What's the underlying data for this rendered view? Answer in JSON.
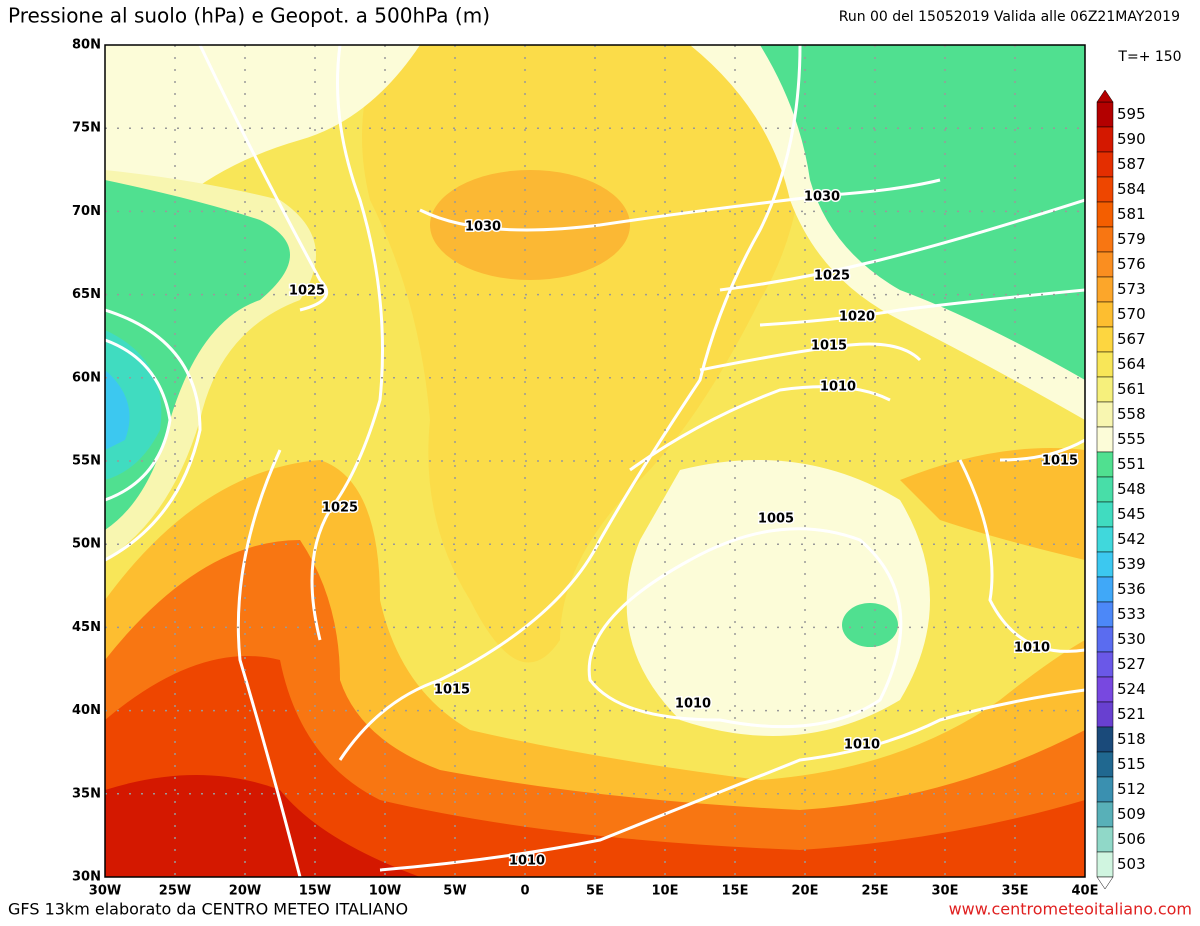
{
  "header": {
    "title": "Pressione al suolo (hPa) e Geopot. a 500hPa (m)",
    "run": "Run 00 del 15052019  Valida alle 06Z21MAY2019",
    "timestep": "T=+ 150"
  },
  "map": {
    "lat_labels": [
      "80N",
      "75N",
      "70N",
      "65N",
      "60N",
      "55N",
      "50N",
      "45N",
      "40N",
      "35N",
      "30N"
    ],
    "lon_labels": [
      "30W",
      "25W",
      "20W",
      "15W",
      "10W",
      "5W",
      "0",
      "5E",
      "10E",
      "15E",
      "20E",
      "25E",
      "30E",
      "35E",
      "40E"
    ],
    "isobar_labels": [
      "1030",
      "1030",
      "1025",
      "1025",
      "1020",
      "1015",
      "1010",
      "1015",
      "1025",
      "1005",
      "1010",
      "1015",
      "1010",
      "1010",
      "1010"
    ]
  },
  "legend": {
    "levels": [
      {
        "label": "595",
        "color": "#b30000"
      },
      {
        "label": "590",
        "color": "#d41800"
      },
      {
        "label": "587",
        "color": "#e42e00"
      },
      {
        "label": "584",
        "color": "#ee4600"
      },
      {
        "label": "581",
        "color": "#f45e00"
      },
      {
        "label": "579",
        "color": "#f87612"
      },
      {
        "label": "576",
        "color": "#fa8e20"
      },
      {
        "label": "573",
        "color": "#fca62a"
      },
      {
        "label": "570",
        "color": "#fdbe30"
      },
      {
        "label": "567",
        "color": "#fdd640"
      },
      {
        "label": "564",
        "color": "#f8e658"
      },
      {
        "label": "561",
        "color": "#f6f07c"
      },
      {
        "label": "558",
        "color": "#f8f6b0"
      },
      {
        "label": "555",
        "color": "#fcfcd8"
      },
      {
        "label": "551",
        "color": "#50e090"
      },
      {
        "label": "548",
        "color": "#48dea8"
      },
      {
        "label": "545",
        "color": "#40dcc0"
      },
      {
        "label": "542",
        "color": "#40d8dc"
      },
      {
        "label": "539",
        "color": "#3cc8f0"
      },
      {
        "label": "536",
        "color": "#40a8f8"
      },
      {
        "label": "533",
        "color": "#4c88f8"
      },
      {
        "label": "530",
        "color": "#5a6cf0"
      },
      {
        "label": "527",
        "color": "#6a58e8"
      },
      {
        "label": "524",
        "color": "#7848e0"
      },
      {
        "label": "521",
        "color": "#6840d0"
      },
      {
        "label": "518",
        "color": "#1a4a7a"
      },
      {
        "label": "515",
        "color": "#206890"
      },
      {
        "label": "512",
        "color": "#3a90b0"
      },
      {
        "label": "509",
        "color": "#58b0b8"
      },
      {
        "label": "506",
        "color": "#90d8c8"
      },
      {
        "label": "503",
        "color": "#d0f5e0"
      }
    ]
  },
  "footer": {
    "left": "GFS 13km elaborato da CENTRO METEO ITALIANO",
    "right": "www.centrometeoitaliano.com"
  }
}
